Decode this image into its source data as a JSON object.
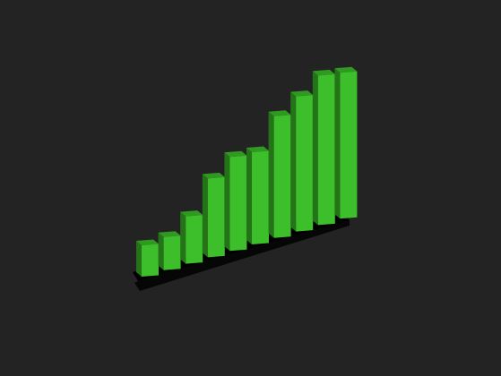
{
  "chart_data": {
    "type": "bar3d",
    "categories": [
      null,
      null,
      null,
      null,
      null,
      null,
      null,
      null,
      null,
      null
    ],
    "values": [
      35,
      37,
      53,
      88,
      105,
      103,
      136,
      151,
      167,
      163
    ],
    "color": "#3cbf2a"
  }
}
